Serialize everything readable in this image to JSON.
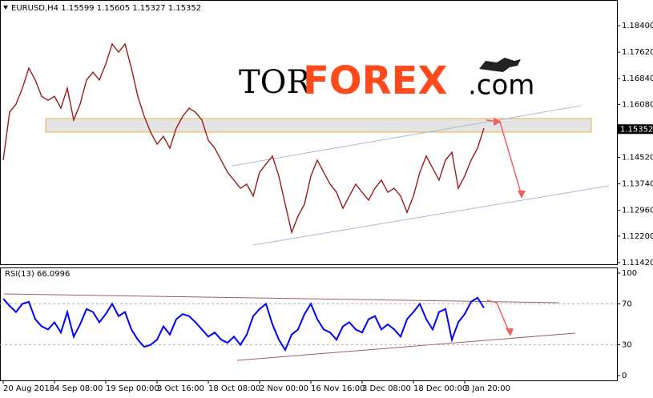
{
  "chart_data": [
    {
      "type": "line",
      "title": "EURUSD,H4  1.15599 1.15605 1.15327 1.15352",
      "color": "#9b1b1b",
      "values": [
        1.1444,
        1.1585,
        1.1609,
        1.1656,
        1.1715,
        1.168,
        1.1632,
        1.162,
        1.1632,
        1.1597,
        1.1656,
        1.1562,
        1.1609,
        1.168,
        1.1703,
        1.168,
        1.1727,
        1.1786,
        1.1762,
        1.1786,
        1.1715,
        1.1632,
        1.1573,
        1.1526,
        1.1491,
        1.1514,
        1.1479,
        1.1538,
        1.1573,
        1.1597,
        1.1585,
        1.1562,
        1.1502,
        1.1479,
        1.1444,
        1.1408,
        1.1385,
        1.1361,
        1.1373,
        1.1338,
        1.1408,
        1.1432,
        1.1456,
        1.1397,
        1.1314,
        1.1231,
        1.1279,
        1.1314,
        1.1397,
        1.1444,
        1.1408,
        1.1373,
        1.1349,
        1.1302,
        1.1338,
        1.1373,
        1.1349,
        1.1326,
        1.1361,
        1.1385,
        1.1349,
        1.1361,
        1.1338,
        1.129,
        1.1338,
        1.1408,
        1.1456,
        1.142,
        1.1385,
        1.1444,
        1.1467,
        1.1361,
        1.1397,
        1.1444,
        1.1479,
        1.1538
      ],
      "xlim": [
        -0.5,
        95.75
      ],
      "ylim": [
        1.1137,
        1.1911
      ],
      "yticks": [
        {
          "value": 1.184,
          "label": "1.18400"
        },
        {
          "value": 1.1762,
          "label": "1.17620"
        },
        {
          "value": 1.1684,
          "label": "1.16840"
        },
        {
          "value": 1.1608,
          "label": "1.16080"
        },
        {
          "value": 1.1452,
          "label": "1.14520"
        },
        {
          "value": 1.1374,
          "label": "1.13740"
        },
        {
          "value": 1.1296,
          "label": "1.12960"
        },
        {
          "value": 1.122,
          "label": "1.12200"
        },
        {
          "value": 1.1142,
          "label": "1.11420"
        }
      ],
      "last_price": 1.15352
    },
    {
      "type": "line",
      "title": "RSI(13) 66.0996",
      "color": "#0000ff",
      "values": [
        75,
        68,
        62,
        70,
        72,
        55,
        48,
        45,
        52,
        42,
        62,
        38,
        50,
        65,
        62,
        52,
        60,
        70,
        58,
        62,
        45,
        35,
        28,
        30,
        35,
        48,
        40,
        55,
        60,
        58,
        52,
        45,
        38,
        42,
        35,
        32,
        38,
        30,
        40,
        58,
        65,
        70,
        50,
        35,
        25,
        40,
        45,
        60,
        70,
        55,
        45,
        42,
        35,
        48,
        52,
        45,
        42,
        55,
        58,
        45,
        50,
        45,
        38,
        55,
        62,
        70,
        55,
        45,
        62,
        65,
        35,
        52,
        60,
        72,
        76,
        66
      ],
      "xlim": [
        -0.5,
        95.75
      ],
      "ylim": [
        -4.7,
        104.7
      ],
      "yticks": [
        100,
        70,
        30,
        0
      ],
      "levels": [
        70,
        30
      ],
      "xticks": [
        {
          "value": 0,
          "label": "20 Aug 2018"
        },
        {
          "value": 8,
          "label": "4 Sep 08:00"
        },
        {
          "value": 16,
          "label": "19 Sep 00:00"
        },
        {
          "value": 24,
          "label": "3 Oct 16:00"
        },
        {
          "value": 32,
          "label": "18 Oct 08:00"
        },
        {
          "value": 40,
          "label": "2 Nov 00:00"
        },
        {
          "value": 48,
          "label": "16 Nov 16:00"
        },
        {
          "value": 56,
          "label": "3 Dec 08:00"
        },
        {
          "value": 64,
          "label": "18 Dec 00:00"
        },
        {
          "value": 72,
          "label": "3 Jan 20:00"
        }
      ]
    }
  ],
  "logo": {
    "part1": "TOR",
    "part2": "FOREX",
    "part3": ".com"
  }
}
